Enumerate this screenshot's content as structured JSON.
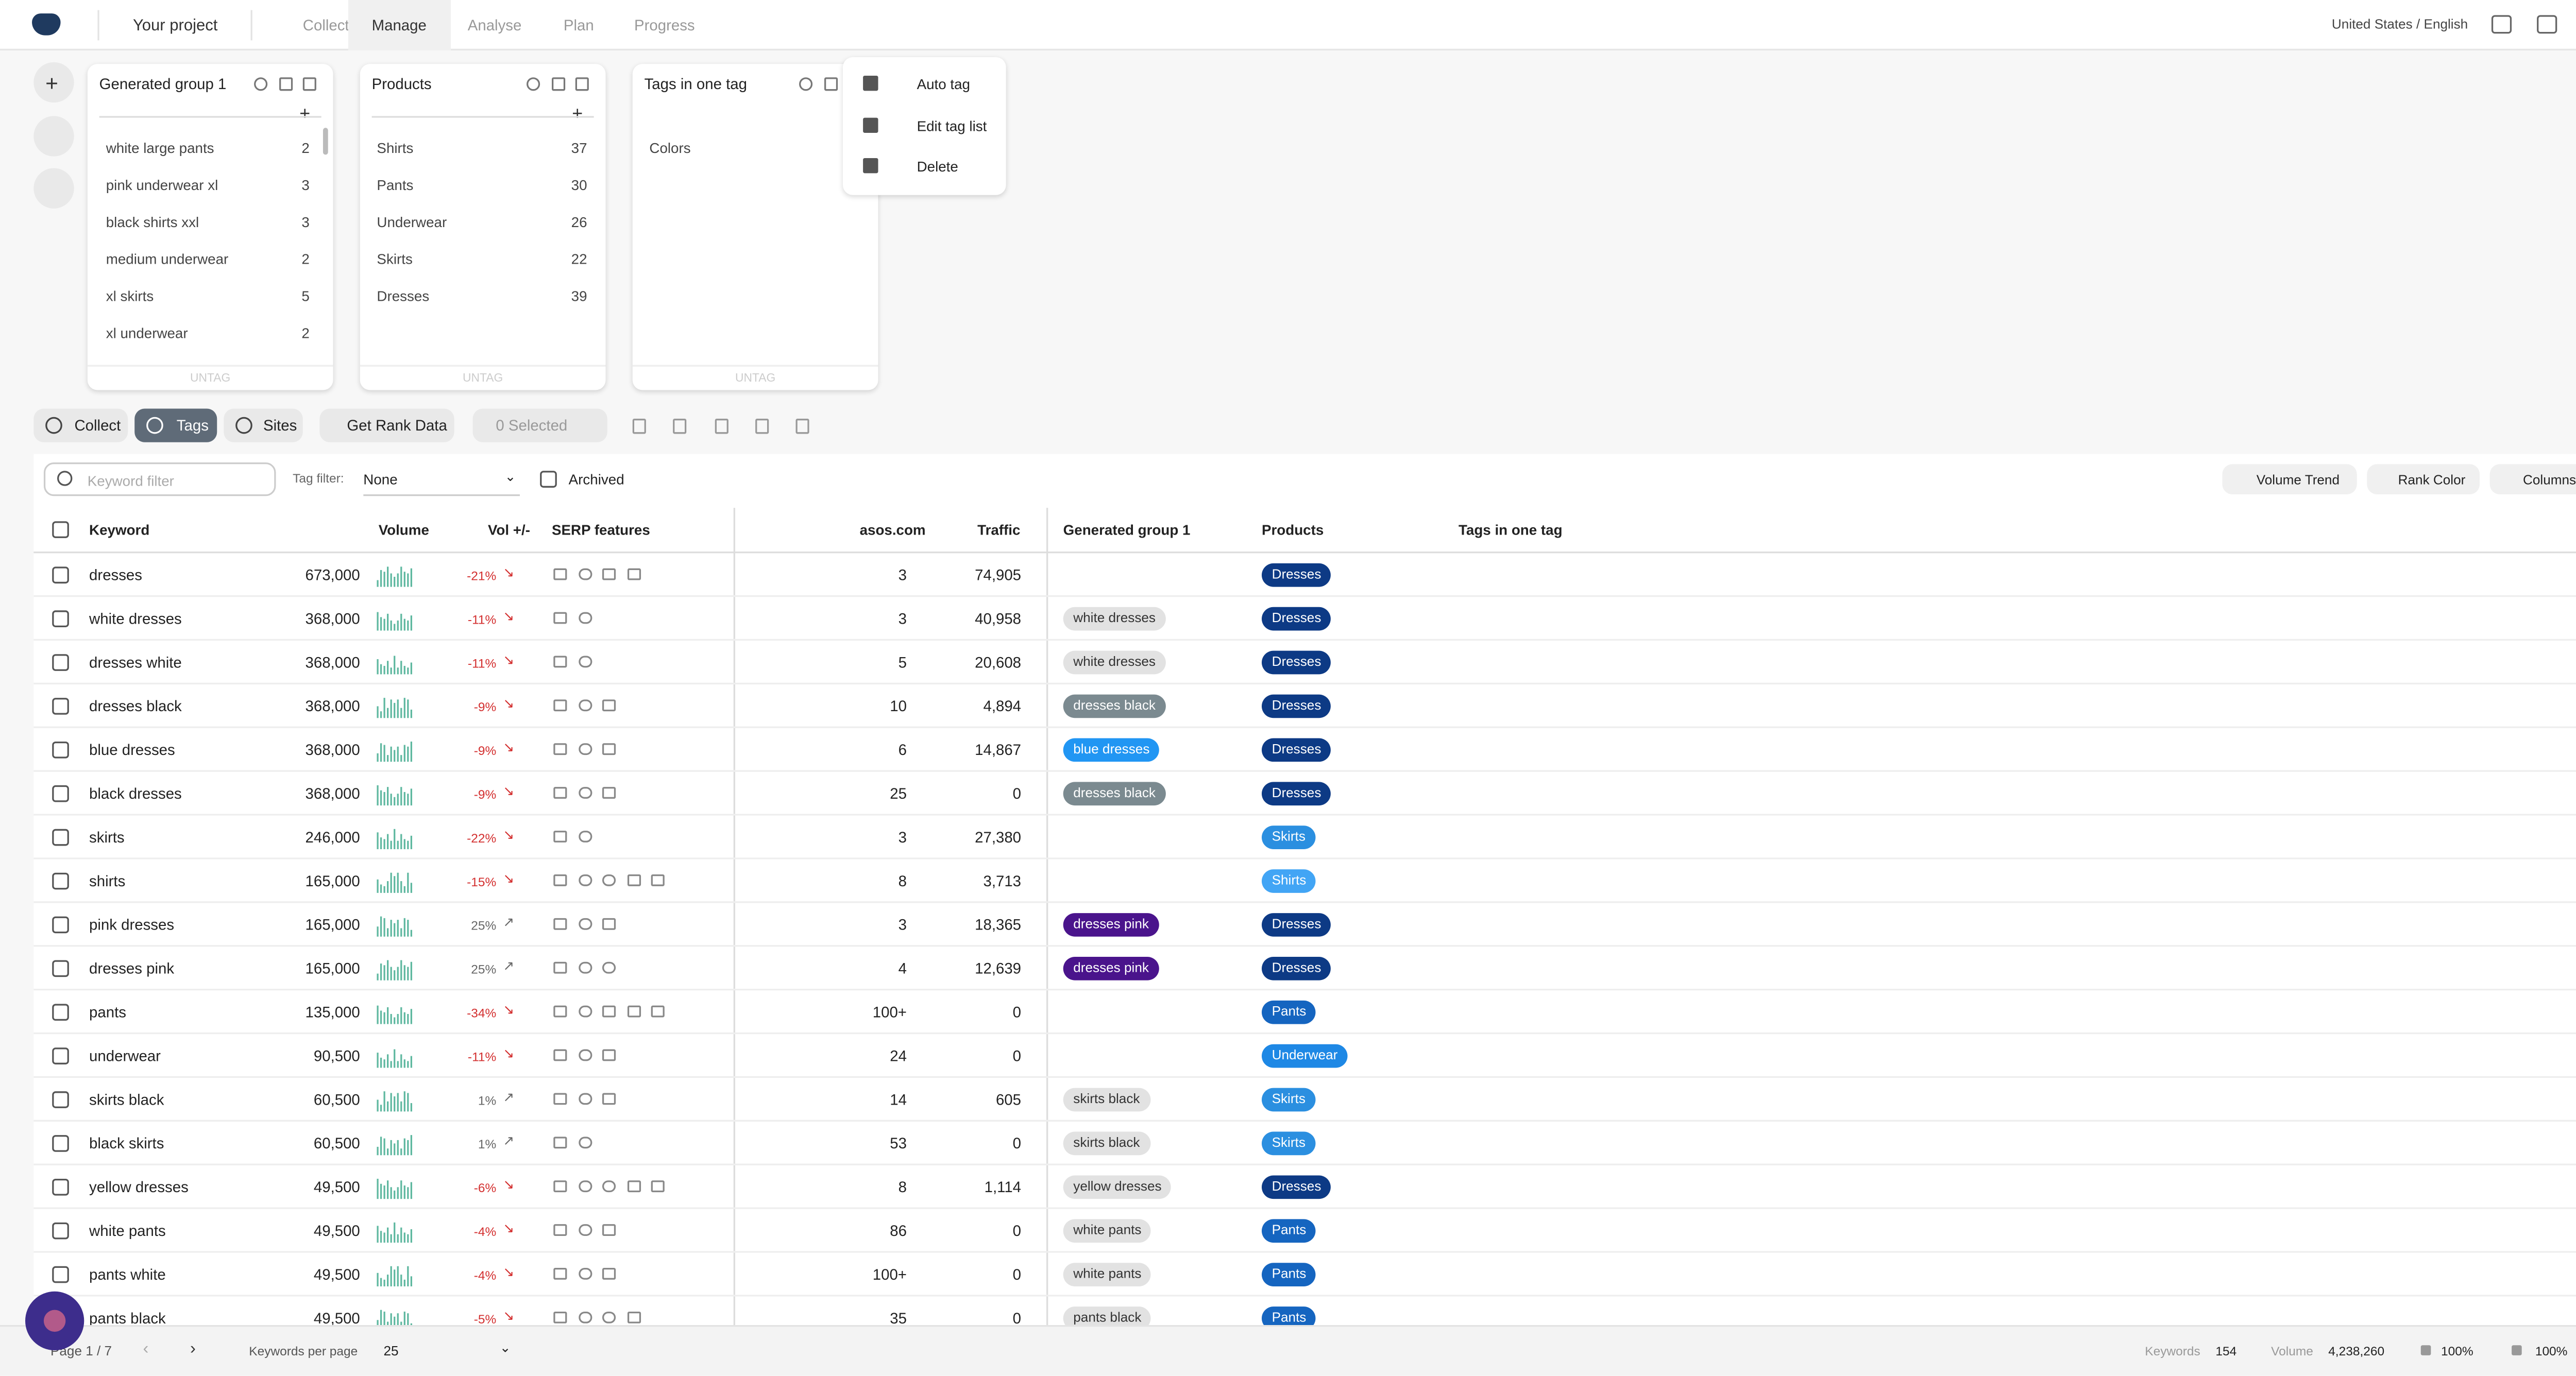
{
  "nav": {
    "project": "Your project",
    "tabs": [
      "Collect",
      "Manage",
      "Analyse",
      "Plan",
      "Progress"
    ],
    "active_tab": 1,
    "locale": "United States / English"
  },
  "tag_groups": [
    {
      "title": "Generated group 1",
      "items": [
        {
          "label": "white large pants",
          "count": 2
        },
        {
          "label": "pink underwear xl",
          "count": 3
        },
        {
          "label": "black shirts xxl",
          "count": 3
        },
        {
          "label": "medium underwear",
          "count": 2
        },
        {
          "label": "xl skirts",
          "count": 5
        },
        {
          "label": "xl underwear",
          "count": 2
        }
      ],
      "untag": "UNTAG"
    },
    {
      "title": "Products",
      "items": [
        {
          "label": "Shirts",
          "count": 37
        },
        {
          "label": "Pants",
          "count": 30
        },
        {
          "label": "Underwear",
          "count": 26
        },
        {
          "label": "Skirts",
          "count": 22
        },
        {
          "label": "Dresses",
          "count": 39
        }
      ],
      "untag": "UNTAG"
    },
    {
      "title": "Tags in one tag",
      "items": [
        {
          "label": "Colors"
        }
      ],
      "untag": "UNTAG"
    }
  ],
  "context_menu": [
    "Auto tag",
    "Edit tag list",
    "Delete"
  ],
  "toolbar": {
    "buttons": [
      "Collect",
      "Tags",
      "Sites"
    ],
    "active": 1,
    "rank_button": "Get Rank Data",
    "selected": "0 Selected"
  },
  "filters": {
    "keyword_placeholder": "Keyword filter",
    "tag_filter_label": "Tag filter:",
    "tag_filter_value": "None",
    "archived": "Archived",
    "buttons": [
      "Volume Trend",
      "Rank Color",
      "Columns"
    ]
  },
  "table": {
    "headers": [
      "Keyword",
      "Volume",
      "Vol +/-",
      "SERP features",
      "asos.com",
      "Traffic",
      "Generated group 1",
      "Products",
      "Tags in one tag"
    ],
    "rows": [
      {
        "keyword": "dresses",
        "volume": "673,000",
        "vol_change": "-21%",
        "rank": "3",
        "traffic": "74,905",
        "group": null,
        "product": {
          "label": "Dresses",
          "color": "#0d3a85"
        }
      },
      {
        "keyword": "white dresses",
        "volume": "368,000",
        "vol_change": "-11%",
        "rank": "3",
        "traffic": "40,958",
        "group": {
          "label": "white dresses",
          "color": "#e2e2e2"
        },
        "product": {
          "label": "Dresses",
          "color": "#0d3a85"
        }
      },
      {
        "keyword": "dresses white",
        "volume": "368,000",
        "vol_change": "-11%",
        "rank": "5",
        "traffic": "20,608",
        "group": {
          "label": "white dresses",
          "color": "#e2e2e2"
        },
        "product": {
          "label": "Dresses",
          "color": "#0d3a85"
        }
      },
      {
        "keyword": "dresses black",
        "volume": "368,000",
        "vol_change": "-9%",
        "rank": "10",
        "traffic": "4,894",
        "group": {
          "label": "dresses black",
          "color": "#7b8a90"
        },
        "product": {
          "label": "Dresses",
          "color": "#0d3a85"
        }
      },
      {
        "keyword": "blue dresses",
        "volume": "368,000",
        "vol_change": "-9%",
        "rank": "6",
        "traffic": "14,867",
        "group": {
          "label": "blue dresses",
          "color": "#2196f3"
        },
        "product": {
          "label": "Dresses",
          "color": "#0d3a85"
        }
      },
      {
        "keyword": "black dresses",
        "volume": "368,000",
        "vol_change": "-9%",
        "rank": "25",
        "traffic": "0",
        "group": {
          "label": "dresses black",
          "color": "#7b8a90"
        },
        "product": {
          "label": "Dresses",
          "color": "#0d3a85"
        }
      },
      {
        "keyword": "skirts",
        "volume": "246,000",
        "vol_change": "-22%",
        "rank": "3",
        "traffic": "27,380",
        "group": null,
        "product": {
          "label": "Skirts",
          "color": "#2b8fe0"
        }
      },
      {
        "keyword": "shirts",
        "volume": "165,000",
        "vol_change": "-15%",
        "rank": "8",
        "traffic": "3,713",
        "group": null,
        "product": {
          "label": "Shirts",
          "color": "#42a5f5"
        }
      },
      {
        "keyword": "pink dresses",
        "volume": "165,000",
        "vol_change": "25%",
        "rank": "3",
        "traffic": "18,365",
        "group": {
          "label": "dresses pink",
          "color": "#4a148c"
        },
        "product": {
          "label": "Dresses",
          "color": "#0d3a85"
        }
      },
      {
        "keyword": "dresses pink",
        "volume": "165,000",
        "vol_change": "25%",
        "rank": "4",
        "traffic": "12,639",
        "group": {
          "label": "dresses pink",
          "color": "#4a148c"
        },
        "product": {
          "label": "Dresses",
          "color": "#0d3a85"
        }
      },
      {
        "keyword": "pants",
        "volume": "135,000",
        "vol_change": "-34%",
        "rank": "100+",
        "traffic": "0",
        "group": null,
        "product": {
          "label": "Pants",
          "color": "#1565c0"
        }
      },
      {
        "keyword": "underwear",
        "volume": "90,500",
        "vol_change": "-11%",
        "rank": "24",
        "traffic": "0",
        "group": null,
        "product": {
          "label": "Underwear",
          "color": "#1e88e5"
        }
      },
      {
        "keyword": "skirts black",
        "volume": "60,500",
        "vol_change": "1%",
        "rank": "14",
        "traffic": "605",
        "group": {
          "label": "skirts black",
          "color": "#e2e2e2"
        },
        "product": {
          "label": "Skirts",
          "color": "#2b8fe0"
        }
      },
      {
        "keyword": "black skirts",
        "volume": "60,500",
        "vol_change": "1%",
        "rank": "53",
        "traffic": "0",
        "group": {
          "label": "skirts black",
          "color": "#e2e2e2"
        },
        "product": {
          "label": "Skirts",
          "color": "#2b8fe0"
        }
      },
      {
        "keyword": "yellow dresses",
        "volume": "49,500",
        "vol_change": "-6%",
        "rank": "8",
        "traffic": "1,114",
        "group": {
          "label": "yellow dresses",
          "color": "#e2e2e2"
        },
        "product": {
          "label": "Dresses",
          "color": "#0d3a85"
        }
      },
      {
        "keyword": "white pants",
        "volume": "49,500",
        "vol_change": "-4%",
        "rank": "86",
        "traffic": "0",
        "group": {
          "label": "white pants",
          "color": "#e2e2e2"
        },
        "product": {
          "label": "Pants",
          "color": "#1565c0"
        }
      },
      {
        "keyword": "pants white",
        "volume": "49,500",
        "vol_change": "-4%",
        "rank": "100+",
        "traffic": "0",
        "group": {
          "label": "white pants",
          "color": "#e2e2e2"
        },
        "product": {
          "label": "Pants",
          "color": "#1565c0"
        }
      },
      {
        "keyword": "pants black",
        "volume": "49,500",
        "vol_change": "-5%",
        "rank": "35",
        "traffic": "0",
        "group": {
          "label": "pants black",
          "color": "#e2e2e2"
        },
        "product": {
          "label": "Pants",
          "color": "#1565c0"
        }
      }
    ]
  },
  "footer": {
    "page": "Page 1 / 7",
    "per_page_label": "Keywords per page",
    "per_page": "25",
    "keywords_label": "Keywords",
    "keywords": "154",
    "volume_label": "Volume",
    "volume": "4,238,260",
    "stat1": "100%",
    "stat2": "100%"
  }
}
